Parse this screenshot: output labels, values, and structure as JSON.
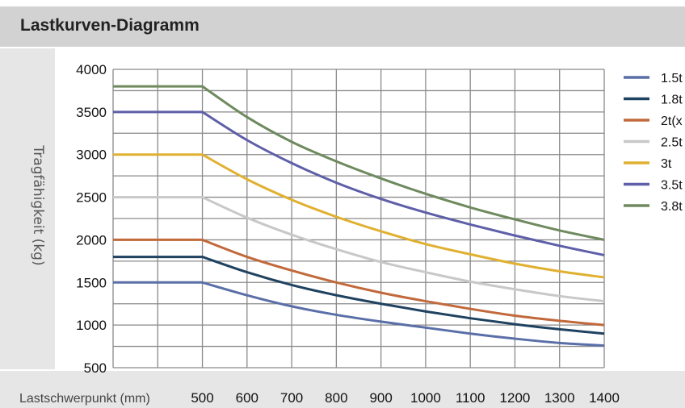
{
  "chart_data": {
    "type": "line",
    "title": "Lastkurven-Diagramm",
    "xlabel": "Lastschwerpunkt (mm)",
    "ylabel": "Tragfähigkeit (kg)",
    "x_ticks": [
      500,
      600,
      700,
      800,
      900,
      1000,
      1100,
      1200,
      1300,
      1400
    ],
    "y_ticks": [
      500,
      1000,
      1500,
      2000,
      2500,
      3000,
      3500,
      4000
    ],
    "xlim": [
      300,
      1400
    ],
    "ylim": [
      500,
      4000
    ],
    "grid": true,
    "legend_position": "right",
    "x": [
      300,
      400,
      500,
      600,
      700,
      800,
      900,
      1000,
      1100,
      1200,
      1300,
      1400
    ],
    "series": [
      {
        "name": "1.5t",
        "color": "#5a6fa8",
        "values": [
          1500,
          1500,
          1500,
          1350,
          1220,
          1120,
          1040,
          970,
          900,
          840,
          790,
          760
        ]
      },
      {
        "name": "1.8t",
        "color": "#1f4260",
        "values": [
          1800,
          1800,
          1800,
          1620,
          1470,
          1350,
          1250,
          1160,
          1080,
          1010,
          950,
          900
        ]
      },
      {
        "name": "2t(x",
        "color": "#c1693b",
        "values": [
          2000,
          2000,
          2000,
          1800,
          1640,
          1500,
          1380,
          1280,
          1190,
          1110,
          1050,
          1000
        ]
      },
      {
        "name": "2.5t",
        "color": "#c8c8c8",
        "values": [
          2500,
          2500,
          2500,
          2260,
          2060,
          1890,
          1740,
          1620,
          1510,
          1420,
          1340,
          1280
        ]
      },
      {
        "name": "3t",
        "color": "#e0b030",
        "values": [
          3000,
          3000,
          3000,
          2710,
          2470,
          2270,
          2100,
          1950,
          1830,
          1720,
          1630,
          1560
        ]
      },
      {
        "name": "3.5t",
        "color": "#5e5fa8",
        "values": [
          3500,
          3500,
          3500,
          3170,
          2900,
          2670,
          2480,
          2320,
          2180,
          2050,
          1930,
          1820
        ]
      },
      {
        "name": "3.8t",
        "color": "#6e8a5e",
        "values": [
          3800,
          3800,
          3800,
          3440,
          3150,
          2920,
          2720,
          2540,
          2380,
          2240,
          2110,
          2000
        ]
      }
    ]
  }
}
